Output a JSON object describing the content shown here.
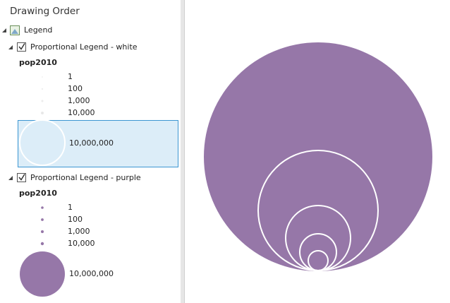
{
  "header": {
    "title": "Drawing Order"
  },
  "tree": {
    "root": {
      "label": "Legend"
    },
    "layers": [
      {
        "label": "Proportional Legend - white",
        "field": "pop2010",
        "classes": [
          "1",
          "100",
          "1,000",
          "10,000",
          "10,000,000"
        ]
      },
      {
        "label": "Proportional Legend - purple",
        "field": "pop2010",
        "classes": [
          "1",
          "100",
          "1,000",
          "10,000",
          "10,000,000"
        ]
      }
    ]
  }
}
